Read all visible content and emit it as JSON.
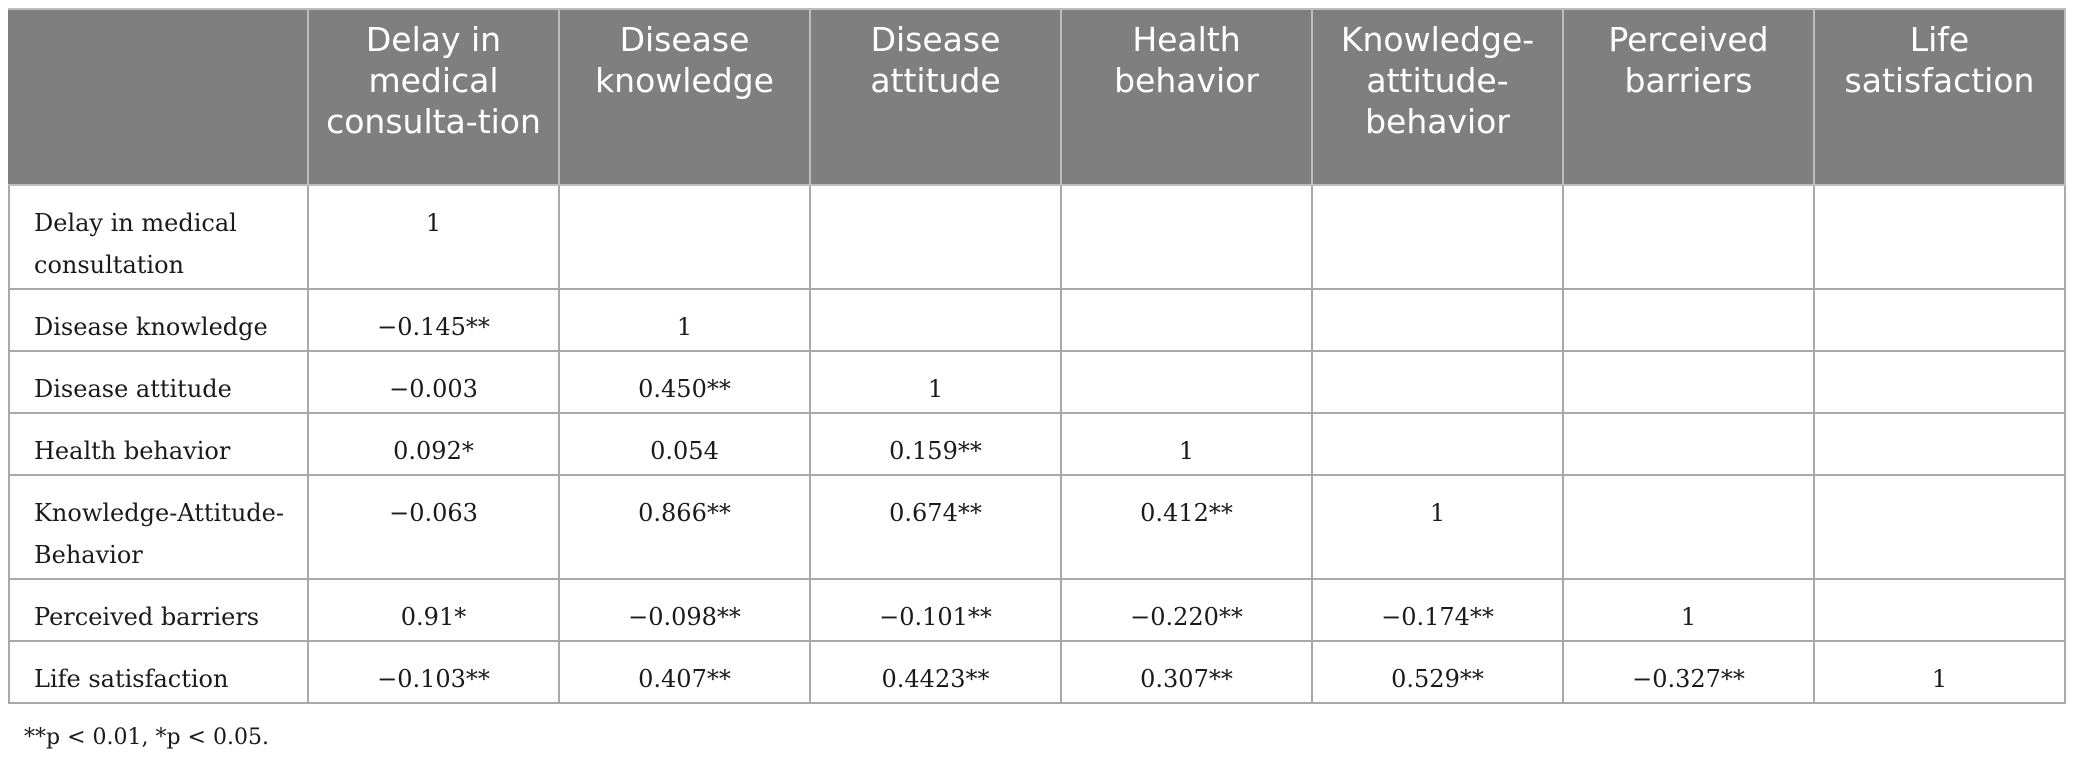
{
  "table": {
    "corner_header": "",
    "columns": [
      "Delay in medical consulta-tion",
      "Disease knowledge",
      "Disease attitude",
      "Health behavior",
      "Knowledge-attitude-behavior",
      "Perceived barriers",
      "Life satisfaction"
    ],
    "rows": [
      {
        "label": "Delay in medical consultation",
        "cells": [
          "1",
          "",
          "",
          "",
          "",
          "",
          ""
        ]
      },
      {
        "label": "Disease knowledge",
        "cells": [
          "−0.145**",
          "1",
          "",
          "",
          "",
          "",
          ""
        ]
      },
      {
        "label": "Disease attitude",
        "cells": [
          "−0.003",
          "0.450**",
          "1",
          "",
          "",
          "",
          ""
        ]
      },
      {
        "label": "Health behavior",
        "cells": [
          "0.092*",
          "0.054",
          "0.159**",
          "1",
          "",
          "",
          ""
        ]
      },
      {
        "label": "Knowledge-Attitude-Behavior",
        "cells": [
          "−0.063",
          "0.866**",
          "0.674**",
          "0.412**",
          "1",
          "",
          ""
        ]
      },
      {
        "label": "Perceived barriers",
        "cells": [
          "0.91*",
          "−0.098**",
          "−0.101**",
          "−0.220**",
          "−0.174**",
          "1",
          ""
        ]
      },
      {
        "label": "Life satisfaction",
        "cells": [
          "−0.103**",
          "0.407**",
          "0.4423**",
          "0.307**",
          "0.529**",
          "−0.327**",
          "1"
        ]
      }
    ]
  },
  "footnote": "**p < 0.01, *p < 0.05.",
  "colors": {
    "header_bg": "#7f7f7f",
    "header_text": "#ffffff",
    "grid": "#a9a9a9"
  }
}
